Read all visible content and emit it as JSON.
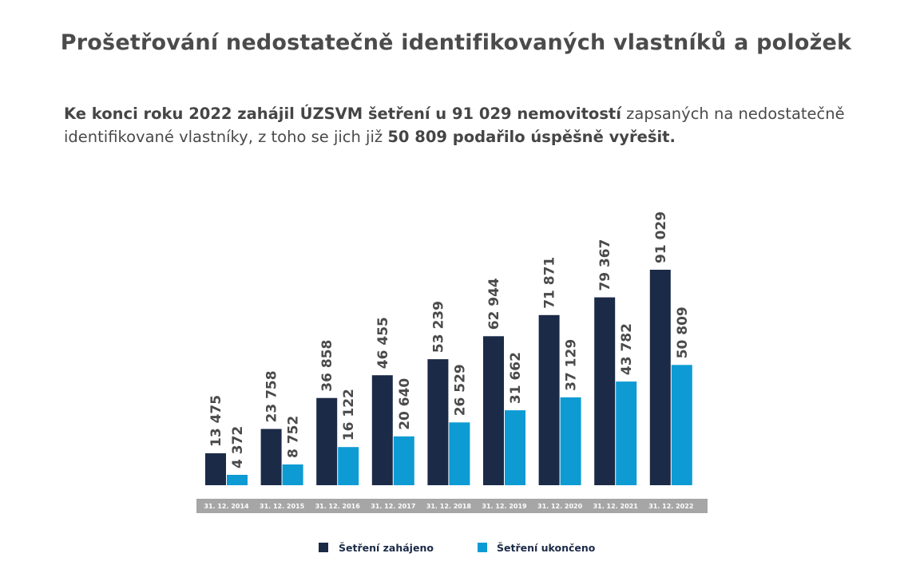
{
  "title": "Prošetřování nedostatečně identifikovaných vlastníků a položek",
  "intro": {
    "part1_bold": "Ke konci roku 2022 zahájil ÚZSVM šetření u 91 029 nemovitostí",
    "part2": " zapsaných na nedostatečně identifikované vlastníky, z toho se jich již ",
    "part3_bold": "50 809 podařilo úspěšně vyřešit."
  },
  "colors": {
    "started": "#1b2a47",
    "finished": "#0e9bd3",
    "category_band": "#a6a6a6"
  },
  "chart_data": {
    "type": "bar",
    "categories": [
      "31. 12. 2014",
      "31. 12. 2015",
      "31. 12. 2016",
      "31. 12. 2017",
      "31. 12. 2018",
      "31. 12. 2019",
      "31. 12. 2020",
      "31. 12. 2021",
      "31. 12. 2022"
    ],
    "series": [
      {
        "name": "Šetření zahájeno",
        "values": [
          13475,
          23758,
          36858,
          46455,
          53239,
          62944,
          71871,
          79367,
          91029
        ],
        "labels": [
          "13 475",
          "23 758",
          "36 858",
          "46 455",
          "53 239",
          "62 944",
          "71 871",
          "79 367",
          "91 029"
        ]
      },
      {
        "name": "Šetření ukončeno",
        "values": [
          4372,
          8752,
          16122,
          20640,
          26529,
          31662,
          37129,
          43782,
          50809
        ],
        "labels": [
          "4 372",
          "8 752",
          "16 122",
          "20 640",
          "26 529",
          "31 662",
          "37 129",
          "43 782",
          "50 809"
        ]
      }
    ],
    "ylim": [
      0,
      91029
    ],
    "grid": false,
    "legend_position": "bottom",
    "value_label_orientation": "vertical"
  }
}
